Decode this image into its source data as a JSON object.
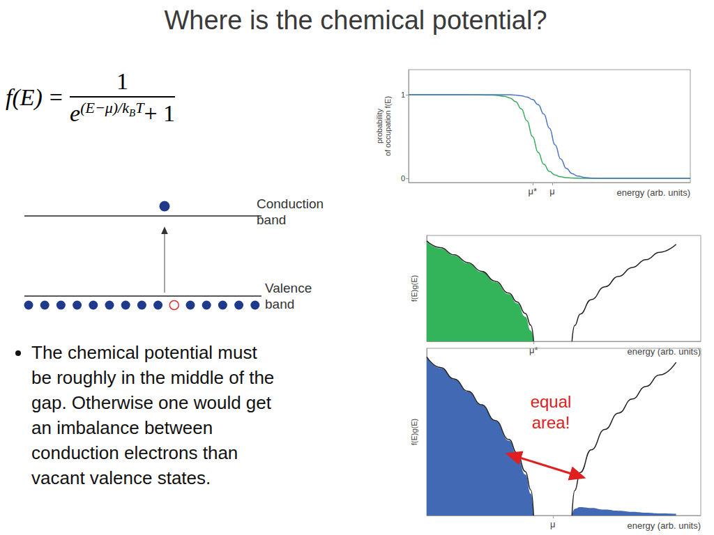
{
  "title": "Where is the chemical potential?",
  "formula": {
    "lhs": "f(E)",
    "equals": "=",
    "numerator": "1",
    "base": "e",
    "exponent": "(E−μ)/k",
    "exponent_sub": "B",
    "exponent_tail": "T",
    "denominator_tail": "+ 1"
  },
  "diagram": {
    "upper_label": "Conduction\nband",
    "lower_label": "Valence\nband"
  },
  "bullet": "The chemical potential must\nbe roughly in the middle of the\ngap. Otherwise one would get\nan imbalance between\nconduction electrons than\nvacant valence states.",
  "chart_data": [
    {
      "type": "line",
      "xlabel": "energy (arb. units)",
      "ylabel": "probability\nof occupation f(E)",
      "xlim": [
        0,
        10
      ],
      "ylim": [
        -0.05,
        1.3
      ],
      "xticks": [
        {
          "value": 4.4,
          "label": "μ*"
        },
        {
          "value": 5.1,
          "label": "μ"
        }
      ],
      "yticks": [
        0,
        1
      ],
      "grid": false,
      "x": [
        0,
        1,
        2,
        3,
        3.4,
        3.6,
        3.8,
        4.0,
        4.2,
        4.4,
        4.6,
        4.8,
        5.0,
        5.2,
        5.4,
        5.6,
        5.8,
        6.0,
        6.3,
        6.6,
        7,
        8,
        9,
        10
      ],
      "series": [
        {
          "type": "line",
          "color": "#3aaa5c",
          "values": [
            1,
            1,
            1,
            0.996,
            0.982,
            0.961,
            0.917,
            0.832,
            0.69,
            0.5,
            0.31,
            0.168,
            0.083,
            0.039,
            0.018,
            0.008,
            0.004,
            0.002,
            0,
            0,
            0,
            0,
            0,
            0
          ]
        },
        {
          "type": "line",
          "color": "#4a74c4",
          "values": [
            1,
            1,
            1,
            1,
            1,
            0.999,
            0.995,
            0.988,
            0.973,
            0.943,
            0.881,
            0.769,
            0.599,
            0.401,
            0.231,
            0.119,
            0.057,
            0.027,
            0.008,
            0.002,
            0,
            0,
            0,
            0
          ]
        }
      ]
    },
    {
      "type": "line",
      "xlabel": "energy (arb. units)",
      "ylabel": "f(E)g(E)",
      "xlim": [
        0,
        10
      ],
      "ylim": [
        0,
        1
      ],
      "xticks": [
        {
          "value": 3.9,
          "label": "μ*"
        }
      ],
      "tick_labels": "x",
      "grid": false,
      "x": [
        0,
        0.5,
        1,
        1.5,
        2,
        2.5,
        3,
        3.3,
        3.6,
        3.8,
        3.9,
        4.6,
        5.3,
        5.4,
        5.6,
        6,
        6.5,
        7,
        7.5,
        8,
        8.5,
        9.1
      ],
      "series": [
        {
          "type": "area",
          "color": "#33b35a",
          "values": [
            0.94,
            0.877,
            0.81,
            0.737,
            0.655,
            0.56,
            0.445,
            0.358,
            0.232,
            0.1,
            0,
            null,
            null,
            null,
            null,
            null,
            null,
            null,
            null,
            null,
            null,
            null
          ]
        },
        {
          "type": "line",
          "color": "#222222",
          "values": [
            0.948,
            0.885,
            0.817,
            0.744,
            0.662,
            0.568,
            0.455,
            0.372,
            0.263,
            0.152,
            0,
            null,
            0,
            0.149,
            0.257,
            0.393,
            0.515,
            0.613,
            0.697,
            0.772,
            0.841,
            0.916
          ]
        }
      ]
    },
    {
      "type": "line",
      "xlabel": "energy (arb. units)",
      "ylabel": "f(E)g(E)",
      "xlim": [
        0,
        10
      ],
      "ylim": [
        0,
        1
      ],
      "xticks": [
        {
          "value": 4.6,
          "label": "μ"
        }
      ],
      "tick_labels": "x",
      "grid": false,
      "annotation": "equal\narea!",
      "x": [
        0,
        0.5,
        1,
        1.5,
        2,
        2.5,
        3,
        3.3,
        3.6,
        3.8,
        3.9,
        4.6,
        5.3,
        5.4,
        5.6,
        6,
        6.5,
        7,
        7.5,
        8,
        8.5,
        9.1
      ],
      "series": [
        {
          "type": "area",
          "color": "#4169b4",
          "values": [
            0.945,
            0.882,
            0.814,
            0.741,
            0.659,
            0.565,
            0.448,
            0.36,
            0.245,
            0.13,
            0,
            null,
            0,
            0.04,
            0.05,
            0.045,
            0.035,
            0.028,
            0.022,
            0.017,
            0.013,
            0.01
          ]
        },
        {
          "type": "line",
          "color": "#222222",
          "values": [
            0.948,
            0.885,
            0.817,
            0.744,
            0.662,
            0.568,
            0.455,
            0.372,
            0.263,
            0.152,
            0,
            null,
            0,
            0.149,
            0.257,
            0.393,
            0.515,
            0.613,
            0.697,
            0.772,
            0.841,
            0.916
          ]
        }
      ]
    }
  ]
}
